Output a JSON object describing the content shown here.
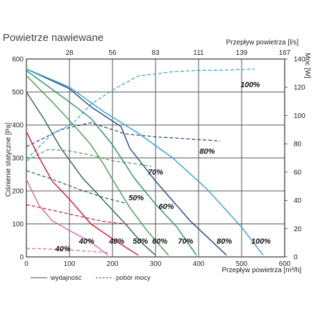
{
  "chart_data": {
    "type": "line",
    "title": "Powietrze nawiewane",
    "xlabel": "Przepływ powietrza [m³/h]",
    "x2label": "Przepływ powietrza [l/s]",
    "ylabel": "Ciśnienie statyczne [Pa]",
    "y2label": "Moc [W]",
    "xlim": [
      0,
      600
    ],
    "ylim": [
      0,
      600
    ],
    "y2lim": [
      0,
      140
    ],
    "xticks": [
      "0",
      "100",
      "200",
      "300",
      "400",
      "500",
      "600"
    ],
    "yticks": [
      "0",
      "100",
      "200",
      "300",
      "400",
      "500",
      "600"
    ],
    "y2ticks": [
      "0",
      "20",
      "40",
      "60",
      "80",
      "100",
      "120",
      "140"
    ],
    "x2ticks": [
      {
        "label": "28",
        "m3h": 100
      },
      {
        "label": "56",
        "m3h": 200
      },
      {
        "label": "83",
        "m3h": 300
      },
      {
        "label": "111",
        "m3h": 400
      },
      {
        "label": "139",
        "m3h": 500
      },
      {
        "label": "167",
        "m3h": 600
      }
    ],
    "grid": true,
    "legend": {
      "position": "bottom-left",
      "solid_label": "wydajność",
      "dashed_label": "pobór mocy"
    },
    "pressure_series": [
      {
        "label": "40%",
        "color": "#d070a8",
        "points": [
          [
            0,
            235
          ],
          [
            30,
            155
          ],
          [
            60,
            110
          ],
          [
            100,
            80
          ],
          [
            150,
            45
          ],
          [
            190,
            5
          ]
        ]
      },
      {
        "label": "40%",
        "color": "#d21f3c",
        "points": [
          [
            0,
            380
          ],
          [
            30,
            300
          ],
          [
            60,
            230
          ],
          [
            100,
            175
          ],
          [
            150,
            100
          ],
          [
            200,
            55
          ],
          [
            260,
            5
          ]
        ]
      },
      {
        "label": "50%",
        "color": "#2e6e4c",
        "points": [
          [
            0,
            500
          ],
          [
            40,
            420
          ],
          [
            80,
            330
          ],
          [
            130,
            240
          ],
          [
            180,
            170
          ],
          [
            230,
            100
          ],
          [
            270,
            40
          ],
          [
            300,
            5
          ]
        ]
      },
      {
        "label": "60%",
        "color": "#4aa25a",
        "points": [
          [
            0,
            550
          ],
          [
            60,
            470
          ],
          [
            110,
            400
          ],
          [
            150,
            340
          ],
          [
            180,
            280
          ],
          [
            200,
            235
          ],
          [
            240,
            150
          ],
          [
            280,
            80
          ],
          [
            330,
            5
          ]
        ]
      },
      {
        "label": "70%",
        "color": "#2f8f78",
        "points": [
          [
            0,
            565
          ],
          [
            100,
            470
          ],
          [
            150,
            420
          ],
          [
            200,
            340
          ],
          [
            250,
            240
          ],
          [
            300,
            160
          ],
          [
            350,
            90
          ],
          [
            395,
            5
          ]
        ]
      },
      {
        "label": "80%",
        "color": "#2c4a8a",
        "points": [
          [
            0,
            570
          ],
          [
            100,
            510
          ],
          [
            150,
            455
          ],
          [
            220,
            395
          ],
          [
            240,
            330
          ],
          [
            300,
            230
          ],
          [
            380,
            110
          ],
          [
            465,
            5
          ]
        ]
      },
      {
        "label": "100%",
        "color": "#32a6d6",
        "points": [
          [
            0,
            570
          ],
          [
            100,
            515
          ],
          [
            180,
            440
          ],
          [
            260,
            375
          ],
          [
            340,
            300
          ],
          [
            420,
            205
          ],
          [
            500,
            90
          ],
          [
            550,
            5
          ]
        ]
      }
    ],
    "power_series": [
      {
        "label": "40%",
        "color": "#d070a8",
        "points": [
          [
            0,
            6
          ],
          [
            60,
            5.5
          ],
          [
            120,
            4.5
          ],
          [
            190,
            3
          ]
        ]
      },
      {
        "label": "",
        "color": "#d21f3c",
        "points": [
          [
            0,
            37
          ],
          [
            60,
            33
          ],
          [
            120,
            29
          ],
          [
            180,
            25
          ],
          [
            240,
            23
          ]
        ]
      },
      {
        "label": "50%",
        "color": "#2e6e4c",
        "points": [
          [
            0,
            61
          ],
          [
            60,
            55
          ],
          [
            120,
            48
          ],
          [
            180,
            42
          ],
          [
            230,
            38
          ]
        ]
      },
      {
        "label": "",
        "color": "#4aa25a",
        "points": [
          [
            0,
            68
          ],
          [
            50,
            76
          ],
          [
            100,
            75
          ],
          [
            150,
            72
          ],
          [
            200,
            68
          ],
          [
            250,
            66
          ],
          [
            290,
            64
          ]
        ]
      },
      {
        "label": "80%",
        "color": "#2c4a8a",
        "points": [
          [
            0,
            78
          ],
          [
            80,
            90
          ],
          [
            150,
            95
          ],
          [
            230,
            87
          ],
          [
            300,
            85
          ],
          [
            350,
            84
          ],
          [
            400,
            83
          ],
          [
            450,
            82
          ]
        ]
      },
      {
        "label": "100%",
        "color": "#32a6d6",
        "points": [
          [
            0,
            69
          ],
          [
            60,
            87
          ],
          [
            110,
            95
          ],
          [
            150,
            108
          ],
          [
            200,
            118
          ],
          [
            260,
            128
          ],
          [
            340,
            131
          ],
          [
            400,
            132
          ],
          [
            450,
            132
          ],
          [
            530,
            133
          ]
        ]
      }
    ]
  }
}
